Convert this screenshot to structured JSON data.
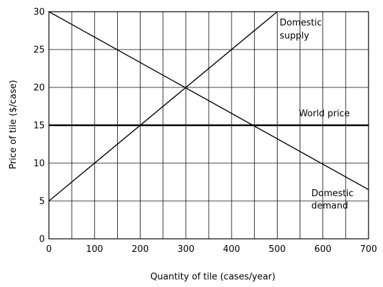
{
  "chart_data": {
    "type": "line",
    "xlabel": "Quantity of tile (cases/year)",
    "ylabel": "Price of tile ($/case)",
    "xlim": [
      0,
      700
    ],
    "ylim": [
      0,
      30
    ],
    "xticks": [
      0,
      100,
      200,
      300,
      400,
      500,
      600,
      700
    ],
    "yticks": [
      0,
      5,
      10,
      15,
      20,
      25,
      30
    ],
    "x_gridlines_every": 50,
    "y_gridlines_every": 5,
    "grid": true,
    "series": [
      {
        "name": "Domestic supply",
        "name_lines": [
          "Domestic",
          "supply"
        ],
        "points": [
          [
            0,
            5
          ],
          [
            500,
            30
          ]
        ],
        "stroke_width": 1.4
      },
      {
        "name": "Domestic demand",
        "name_lines": [
          "Domestic",
          "demand"
        ],
        "points": [
          [
            0,
            30
          ],
          [
            700,
            6.5
          ]
        ],
        "stroke_width": 1.4
      },
      {
        "name": "World price",
        "name_lines": [
          "World price"
        ],
        "points": [
          [
            0,
            15
          ],
          [
            700,
            15
          ]
        ],
        "stroke_width": 2.6
      }
    ],
    "colors": {
      "line": "#000000",
      "grid": "#000000",
      "background": "#ffffff"
    }
  }
}
